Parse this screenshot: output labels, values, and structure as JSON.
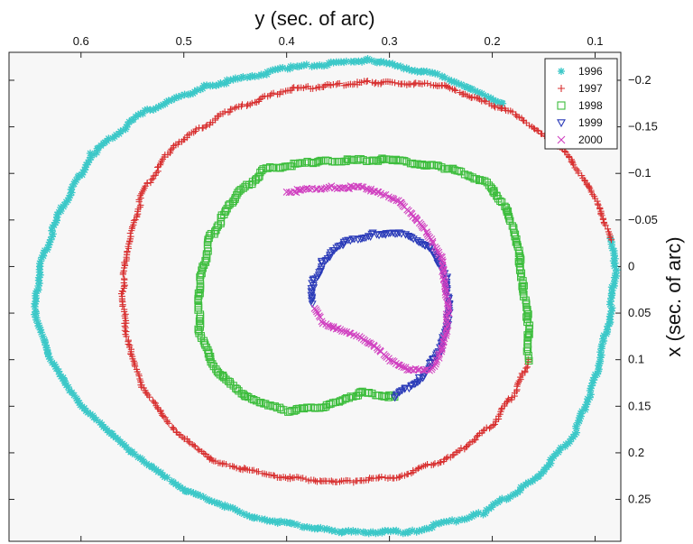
{
  "chart_data": {
    "type": "scatter",
    "title": "",
    "xlabel": "y (sec. of arc)",
    "ylabel": "x (sec. of arc)",
    "x_axis": {
      "position": "top",
      "reversed": true,
      "lim": [
        0.075,
        0.67
      ],
      "ticks": [
        0.6,
        0.5,
        0.4,
        0.3,
        0.2,
        0.1
      ]
    },
    "y_axis": {
      "position": "right",
      "reversed": true,
      "lim": [
        -0.23,
        0.295
      ],
      "ticks": [
        -0.2,
        -0.15,
        -0.1,
        -0.05,
        0,
        0.05,
        0.1,
        0.15,
        0.2,
        0.25
      ]
    },
    "grid": false,
    "legend": {
      "position": "top-right",
      "entries": [
        "1996",
        "1997",
        "1998",
        "1999",
        "2000"
      ]
    },
    "series": [
      {
        "name": "1996",
        "marker": "asterisk",
        "color": "#3cc8c8",
        "points": [
          [
            0.19,
            -0.175
          ],
          [
            0.25,
            -0.205
          ],
          [
            0.32,
            -0.222
          ],
          [
            0.4,
            -0.213
          ],
          [
            0.48,
            -0.193
          ],
          [
            0.54,
            -0.165
          ],
          [
            0.59,
            -0.12
          ],
          [
            0.62,
            -0.06
          ],
          [
            0.64,
            0.0
          ],
          [
            0.645,
            0.05
          ],
          [
            0.63,
            0.1
          ],
          [
            0.6,
            0.15
          ],
          [
            0.55,
            0.2
          ],
          [
            0.5,
            0.24
          ],
          [
            0.43,
            0.27
          ],
          [
            0.35,
            0.285
          ],
          [
            0.28,
            0.285
          ],
          [
            0.21,
            0.265
          ],
          [
            0.16,
            0.23
          ],
          [
            0.12,
            0.18
          ],
          [
            0.1,
            0.12
          ],
          [
            0.085,
            0.05
          ],
          [
            0.08,
            0.0
          ],
          [
            0.085,
            -0.03
          ]
        ]
      },
      {
        "name": "1997",
        "marker": "plus",
        "color": "#d83030",
        "points": [
          [
            0.085,
            -0.03
          ],
          [
            0.1,
            -0.075
          ],
          [
            0.13,
            -0.125
          ],
          [
            0.18,
            -0.165
          ],
          [
            0.25,
            -0.195
          ],
          [
            0.32,
            -0.198
          ],
          [
            0.4,
            -0.19
          ],
          [
            0.46,
            -0.165
          ],
          [
            0.51,
            -0.13
          ],
          [
            0.54,
            -0.08
          ],
          [
            0.555,
            -0.02
          ],
          [
            0.56,
            0.03
          ],
          [
            0.555,
            0.08
          ],
          [
            0.54,
            0.13
          ],
          [
            0.51,
            0.175
          ],
          [
            0.47,
            0.21
          ],
          [
            0.41,
            0.225
          ],
          [
            0.35,
            0.232
          ],
          [
            0.29,
            0.225
          ],
          [
            0.24,
            0.205
          ],
          [
            0.2,
            0.17
          ],
          [
            0.175,
            0.13
          ],
          [
            0.165,
            0.1
          ]
        ]
      },
      {
        "name": "1998",
        "marker": "square",
        "color": "#3cbd3c",
        "points": [
          [
            0.165,
            0.1
          ],
          [
            0.165,
            0.06
          ],
          [
            0.17,
            0.02
          ],
          [
            0.175,
            -0.02
          ],
          [
            0.185,
            -0.06
          ],
          [
            0.205,
            -0.09
          ],
          [
            0.24,
            -0.105
          ],
          [
            0.3,
            -0.115
          ],
          [
            0.37,
            -0.113
          ],
          [
            0.42,
            -0.105
          ],
          [
            0.45,
            -0.075
          ],
          [
            0.475,
            -0.03
          ],
          [
            0.485,
            0.02
          ],
          [
            0.485,
            0.07
          ],
          [
            0.47,
            0.11
          ],
          [
            0.44,
            0.14
          ],
          [
            0.4,
            0.155
          ],
          [
            0.36,
            0.15
          ],
          [
            0.34,
            0.14
          ],
          [
            0.325,
            0.135
          ],
          [
            0.31,
            0.138
          ],
          [
            0.295,
            0.14
          ]
        ]
      },
      {
        "name": "1999",
        "marker": "triangle-down",
        "color": "#2a3ab8",
        "points": [
          [
            0.295,
            0.14
          ],
          [
            0.27,
            0.12
          ],
          [
            0.25,
            0.09
          ],
          [
            0.242,
            0.05
          ],
          [
            0.245,
            0.01
          ],
          [
            0.26,
            -0.02
          ],
          [
            0.285,
            -0.035
          ],
          [
            0.315,
            -0.035
          ],
          [
            0.345,
            -0.025
          ],
          [
            0.365,
            -0.005
          ],
          [
            0.375,
            0.02
          ],
          [
            0.375,
            0.04
          ]
        ]
      },
      {
        "name": "2000",
        "marker": "cross",
        "color": "#d040c0",
        "points": [
          [
            0.372,
            0.045
          ],
          [
            0.365,
            0.06
          ],
          [
            0.345,
            0.07
          ],
          [
            0.33,
            0.075
          ],
          [
            0.315,
            0.085
          ],
          [
            0.3,
            0.1
          ],
          [
            0.28,
            0.112
          ],
          [
            0.26,
            0.11
          ],
          [
            0.248,
            0.09
          ],
          [
            0.243,
            0.05
          ],
          [
            0.245,
            0.02
          ],
          [
            0.25,
            -0.01
          ],
          [
            0.265,
            -0.04
          ],
          [
            0.29,
            -0.07
          ],
          [
            0.325,
            -0.085
          ],
          [
            0.36,
            -0.085
          ],
          [
            0.4,
            -0.08
          ]
        ]
      }
    ]
  }
}
